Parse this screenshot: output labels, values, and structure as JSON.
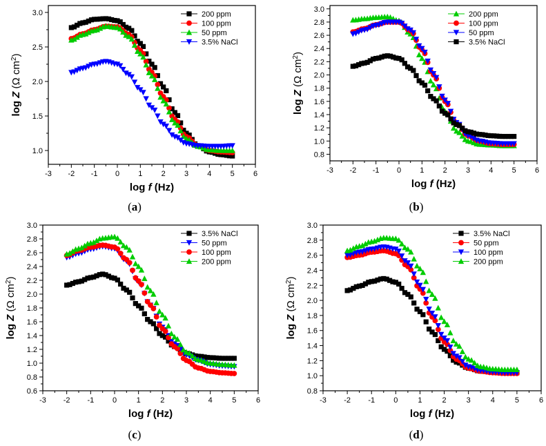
{
  "figure": {
    "panels": [
      "a",
      "b",
      "c",
      "d"
    ]
  },
  "chart_data": [
    {
      "type": "scatter",
      "caption": "(a)",
      "caption_letter": "a",
      "xlabel_prefix": "log",
      "xlabel_var": "f",
      "xlabel_unit": "(Hz)",
      "ylabel_prefix": "log",
      "ylabel_var": "Z",
      "ylabel_unit": "(Ω cm",
      "ylabel_sup": "2",
      "ylabel_close": ")",
      "xlim": [
        -3,
        6
      ],
      "ylim": [
        0.8,
        3.1
      ],
      "xticks": [
        "-3",
        "-2",
        "-1",
        "0",
        "1",
        "2",
        "3",
        "4",
        "5",
        "6"
      ],
      "yticks": [
        "1.0",
        "1.5",
        "2.0",
        "2.5",
        "3.0"
      ],
      "legend_position": "top-right",
      "series": [
        {
          "name": "200 ppm",
          "marker": "square",
          "color": "#000000",
          "x": [
            -2.0,
            -1.5,
            -1.0,
            -0.5,
            0.0,
            0.5,
            1.0,
            1.5,
            2.0,
            2.5,
            3.0,
            3.5,
            4.0,
            4.5,
            5.0
          ],
          "y": [
            2.78,
            2.85,
            2.9,
            2.91,
            2.88,
            2.77,
            2.55,
            2.25,
            1.92,
            1.55,
            1.25,
            1.07,
            0.98,
            0.94,
            0.92
          ]
        },
        {
          "name": "100 ppm",
          "marker": "circle",
          "color": "#ff0000",
          "x": [
            -2.0,
            -1.5,
            -1.0,
            -0.5,
            0.0,
            0.5,
            1.0,
            1.5,
            2.0,
            2.5,
            3.0,
            3.5,
            4.0,
            4.5,
            5.0
          ],
          "y": [
            2.62,
            2.69,
            2.75,
            2.8,
            2.79,
            2.68,
            2.45,
            2.13,
            1.78,
            1.45,
            1.2,
            1.07,
            1.0,
            0.98,
            0.97
          ]
        },
        {
          "name": "50 ppm",
          "marker": "triangle-up",
          "color": "#00cc00",
          "x": [
            -2.0,
            -1.5,
            -1.0,
            -0.5,
            0.0,
            0.5,
            1.0,
            1.5,
            2.0,
            2.5,
            3.0,
            3.5,
            4.0,
            4.5,
            5.0
          ],
          "y": [
            2.6,
            2.68,
            2.74,
            2.8,
            2.78,
            2.65,
            2.4,
            2.08,
            1.72,
            1.4,
            1.17,
            1.06,
            1.01,
            1.0,
            1.0
          ]
        },
        {
          "name": "3.5% NaCl",
          "marker": "triangle-down",
          "color": "#0000ff",
          "x": [
            -2.0,
            -1.5,
            -1.0,
            -0.5,
            0.0,
            0.5,
            1.0,
            1.5,
            2.0,
            2.5,
            3.0,
            3.5,
            4.0,
            4.5,
            5.0
          ],
          "y": [
            2.13,
            2.19,
            2.25,
            2.29,
            2.25,
            2.1,
            1.88,
            1.62,
            1.38,
            1.2,
            1.1,
            1.07,
            1.06,
            1.06,
            1.07
          ]
        }
      ]
    },
    {
      "type": "scatter",
      "caption": "(b)",
      "caption_letter": "b",
      "xlabel_prefix": "log",
      "xlabel_var": "f",
      "xlabel_unit": "(Hz)",
      "ylabel_prefix": "log",
      "ylabel_var": "Z",
      "ylabel_unit": "(Ω cm",
      "ylabel_sup": "2",
      "ylabel_close": ")",
      "xlim": [
        -3,
        6
      ],
      "ylim": [
        0.7,
        3.05
      ],
      "xticks": [
        "-3",
        "-2",
        "-1",
        "0",
        "1",
        "2",
        "3",
        "4",
        "5",
        "6"
      ],
      "yticks": [
        "0.8",
        "1.0",
        "1.2",
        "1.4",
        "1.6",
        "1.8",
        "2.0",
        "2.2",
        "2.4",
        "2.6",
        "2.8",
        "3.0"
      ],
      "legend_position": "top-right",
      "series": [
        {
          "name": "200 ppm",
          "marker": "triangle-up",
          "color": "#00cc00",
          "x": [
            -2.0,
            -1.5,
            -1.0,
            -0.5,
            0.0,
            0.5,
            1.0,
            1.5,
            2.0,
            2.5,
            3.0,
            3.5,
            4.0,
            4.5,
            5.0
          ],
          "y": [
            2.83,
            2.85,
            2.87,
            2.88,
            2.82,
            2.62,
            2.25,
            1.85,
            1.45,
            1.15,
            1.0,
            0.95,
            0.94,
            0.93,
            0.93
          ]
        },
        {
          "name": "100 ppm",
          "marker": "circle",
          "color": "#ff0000",
          "x": [
            -2.0,
            -1.5,
            -1.0,
            -0.5,
            0.0,
            0.5,
            1.0,
            1.5,
            2.0,
            2.5,
            3.0,
            3.5,
            4.0,
            4.5,
            5.0
          ],
          "y": [
            2.65,
            2.7,
            2.76,
            2.8,
            2.8,
            2.67,
            2.38,
            2.0,
            1.6,
            1.27,
            1.08,
            1.0,
            0.96,
            0.95,
            0.95
          ]
        },
        {
          "name": "50 ppm",
          "marker": "triangle-down",
          "color": "#0000ff",
          "x": [
            -2.0,
            -1.5,
            -1.0,
            -0.5,
            0.0,
            0.5,
            1.0,
            1.5,
            2.0,
            2.5,
            3.0,
            3.5,
            4.0,
            4.5,
            5.0
          ],
          "y": [
            2.62,
            2.68,
            2.75,
            2.8,
            2.8,
            2.68,
            2.4,
            2.02,
            1.62,
            1.28,
            1.08,
            1.0,
            0.97,
            0.96,
            0.96
          ]
        },
        {
          "name": "3.5% NaCl",
          "marker": "square",
          "color": "#000000",
          "x": [
            -2.0,
            -1.5,
            -1.0,
            -0.5,
            0.0,
            0.5,
            1.0,
            1.5,
            2.0,
            2.5,
            3.0,
            3.5,
            4.0,
            4.5,
            5.0
          ],
          "y": [
            2.13,
            2.18,
            2.25,
            2.29,
            2.25,
            2.1,
            1.88,
            1.64,
            1.42,
            1.25,
            1.14,
            1.1,
            1.08,
            1.07,
            1.07
          ]
        }
      ]
    },
    {
      "type": "scatter",
      "caption": "(c)",
      "caption_letter": "c",
      "xlabel_prefix": "log",
      "xlabel_var": "f",
      "xlabel_unit": "(Hz)",
      "ylabel_prefix": "log",
      "ylabel_var": "Z",
      "ylabel_unit": "(Ω cm",
      "ylabel_sup": "2",
      "ylabel_close": ")",
      "xlim": [
        -3,
        6
      ],
      "ylim": [
        0.6,
        3.0
      ],
      "xticks": [
        "-3",
        "-2",
        "-1",
        "0",
        "1",
        "2",
        "3",
        "4",
        "5",
        "6"
      ],
      "yticks": [
        "0.6",
        "0.8",
        "1.0",
        "1.2",
        "1.4",
        "1.6",
        "1.8",
        "2.0",
        "2.2",
        "2.4",
        "2.6",
        "2.8",
        "3.0"
      ],
      "legend_position": "top-right",
      "series": [
        {
          "name": "3.5% NaCl",
          "marker": "square",
          "color": "#000000",
          "x": [
            -2.0,
            -1.5,
            -1.0,
            -0.5,
            0.0,
            0.5,
            1.0,
            1.5,
            2.0,
            2.5,
            3.0,
            3.5,
            4.0,
            4.5,
            5.0
          ],
          "y": [
            2.13,
            2.18,
            2.24,
            2.29,
            2.23,
            2.06,
            1.83,
            1.6,
            1.4,
            1.24,
            1.14,
            1.1,
            1.08,
            1.07,
            1.07
          ]
        },
        {
          "name": "50 ppm",
          "marker": "triangle-down",
          "color": "#0000ff",
          "x": [
            -2.0,
            -1.5,
            -1.0,
            -0.5,
            0.0,
            0.5,
            1.0,
            1.5,
            2.0,
            2.5,
            3.0,
            3.5,
            4.0,
            4.5,
            5.0
          ],
          "y": [
            2.53,
            2.59,
            2.65,
            2.69,
            2.66,
            2.48,
            2.18,
            1.84,
            1.52,
            1.28,
            1.12,
            1.04,
            0.98,
            0.96,
            0.95
          ]
        },
        {
          "name": "100 ppm",
          "marker": "circle",
          "color": "#ff0000",
          "x": [
            -2.0,
            -1.5,
            -1.0,
            -0.5,
            0.0,
            0.5,
            1.0,
            1.5,
            2.0,
            2.5,
            3.0,
            3.5,
            4.0,
            4.5,
            5.0
          ],
          "y": [
            2.56,
            2.63,
            2.68,
            2.71,
            2.68,
            2.5,
            2.19,
            1.84,
            1.5,
            1.24,
            1.04,
            0.93,
            0.88,
            0.86,
            0.85
          ]
        },
        {
          "name": "200 ppm",
          "marker": "triangle-up",
          "color": "#00cc00",
          "x": [
            -2.0,
            -1.5,
            -1.0,
            -0.5,
            0.0,
            0.5,
            1.0,
            1.5,
            2.0,
            2.5,
            3.0,
            3.5,
            4.0,
            4.5,
            5.0
          ],
          "y": [
            2.58,
            2.66,
            2.74,
            2.81,
            2.83,
            2.68,
            2.4,
            2.05,
            1.7,
            1.38,
            1.16,
            1.05,
            1.0,
            0.98,
            0.97
          ]
        }
      ]
    },
    {
      "type": "scatter",
      "caption": "(d)",
      "caption_letter": "d",
      "xlabel_prefix": "log",
      "xlabel_var": "f",
      "xlabel_unit": "(Hz)",
      "ylabel_prefix": "log",
      "ylabel_var": "Z",
      "ylabel_unit": "(Ω cm",
      "ylabel_sup": "2",
      "ylabel_close": ")",
      "xlim": [
        -3,
        6
      ],
      "ylim": [
        0.8,
        3.0
      ],
      "xticks": [
        "-3",
        "-2",
        "-1",
        "0",
        "1",
        "2",
        "3",
        "4",
        "5",
        "6"
      ],
      "yticks": [
        "0.8",
        "1.0",
        "1.2",
        "1.4",
        "1.6",
        "1.8",
        "2.0",
        "2.2",
        "2.4",
        "2.6",
        "2.8",
        "3.0"
      ],
      "legend_position": "top-right",
      "series": [
        {
          "name": "3.5% NaCl",
          "marker": "square",
          "color": "#000000",
          "x": [
            -2.0,
            -1.5,
            -1.0,
            -0.5,
            0.0,
            0.5,
            1.0,
            1.5,
            2.0,
            2.5,
            3.0,
            3.5,
            4.0,
            4.5,
            5.0
          ],
          "y": [
            2.13,
            2.19,
            2.25,
            2.29,
            2.24,
            2.08,
            1.85,
            1.58,
            1.35,
            1.18,
            1.1,
            1.06,
            1.05,
            1.04,
            1.04
          ]
        },
        {
          "name": "50 ppm",
          "marker": "circle",
          "color": "#ff0000",
          "x": [
            -2.0,
            -1.5,
            -1.0,
            -0.5,
            0.0,
            0.5,
            1.0,
            1.5,
            2.0,
            2.5,
            3.0,
            3.5,
            4.0,
            4.5,
            5.0
          ],
          "y": [
            2.57,
            2.6,
            2.64,
            2.66,
            2.62,
            2.45,
            2.15,
            1.78,
            1.45,
            1.22,
            1.1,
            1.06,
            1.04,
            1.03,
            1.03
          ]
        },
        {
          "name": "100 ppm",
          "marker": "triangle-down",
          "color": "#0000ff",
          "x": [
            -2.0,
            -1.5,
            -1.0,
            -0.5,
            0.0,
            0.5,
            1.0,
            1.5,
            2.0,
            2.5,
            3.0,
            3.5,
            4.0,
            4.5,
            5.0
          ],
          "y": [
            2.6,
            2.64,
            2.68,
            2.71,
            2.68,
            2.5,
            2.2,
            1.83,
            1.5,
            1.26,
            1.12,
            1.07,
            1.05,
            1.04,
            1.04
          ]
        },
        {
          "name": "200 ppm",
          "marker": "triangle-up",
          "color": "#00cc00",
          "x": [
            -2.0,
            -1.5,
            -1.0,
            -0.5,
            0.0,
            0.5,
            1.0,
            1.5,
            2.0,
            2.5,
            3.0,
            3.5,
            4.0,
            4.5,
            5.0
          ],
          "y": [
            2.66,
            2.72,
            2.78,
            2.83,
            2.82,
            2.68,
            2.42,
            2.08,
            1.72,
            1.42,
            1.22,
            1.12,
            1.09,
            1.08,
            1.08
          ]
        }
      ]
    }
  ]
}
